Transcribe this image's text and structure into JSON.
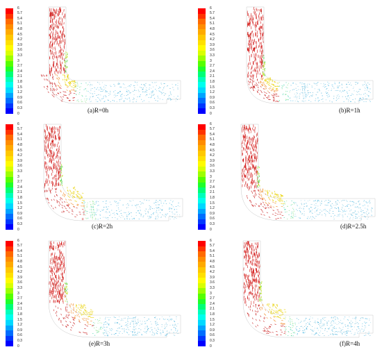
{
  "colorbar": {
    "ticks": [
      "6",
      "5.7",
      "5.4",
      "5.1",
      "4.8",
      "4.5",
      "4.2",
      "3.9",
      "3.6",
      "3.3",
      "3",
      "2.7",
      "2.4",
      "2.1",
      "1.8",
      "1.5",
      "1.2",
      "0.9",
      "0.6",
      "0.3",
      "0"
    ],
    "colors": [
      "#ff0000",
      "#ff3300",
      "#ff6a00",
      "#ff8c00",
      "#ffaa00",
      "#ffc800",
      "#ffe000",
      "#fffb00",
      "#d9ff00",
      "#9cff00",
      "#55ff00",
      "#1fff2a",
      "#00ff77",
      "#00ffbb",
      "#00ffee",
      "#00d9ff",
      "#00a4ff",
      "#006eff",
      "#0038ff",
      "#0000ff"
    ]
  },
  "panels": [
    {
      "id": "a",
      "caption": "(a)R=0h"
    },
    {
      "id": "b",
      "caption": "(b)R=1h"
    },
    {
      "id": "c",
      "caption": "(c)R=2h"
    },
    {
      "id": "d",
      "caption": "(d)R=2.5h"
    },
    {
      "id": "e",
      "caption": "(e)R=3h"
    },
    {
      "id": "f",
      "caption": "(f)R=4h"
    }
  ]
}
